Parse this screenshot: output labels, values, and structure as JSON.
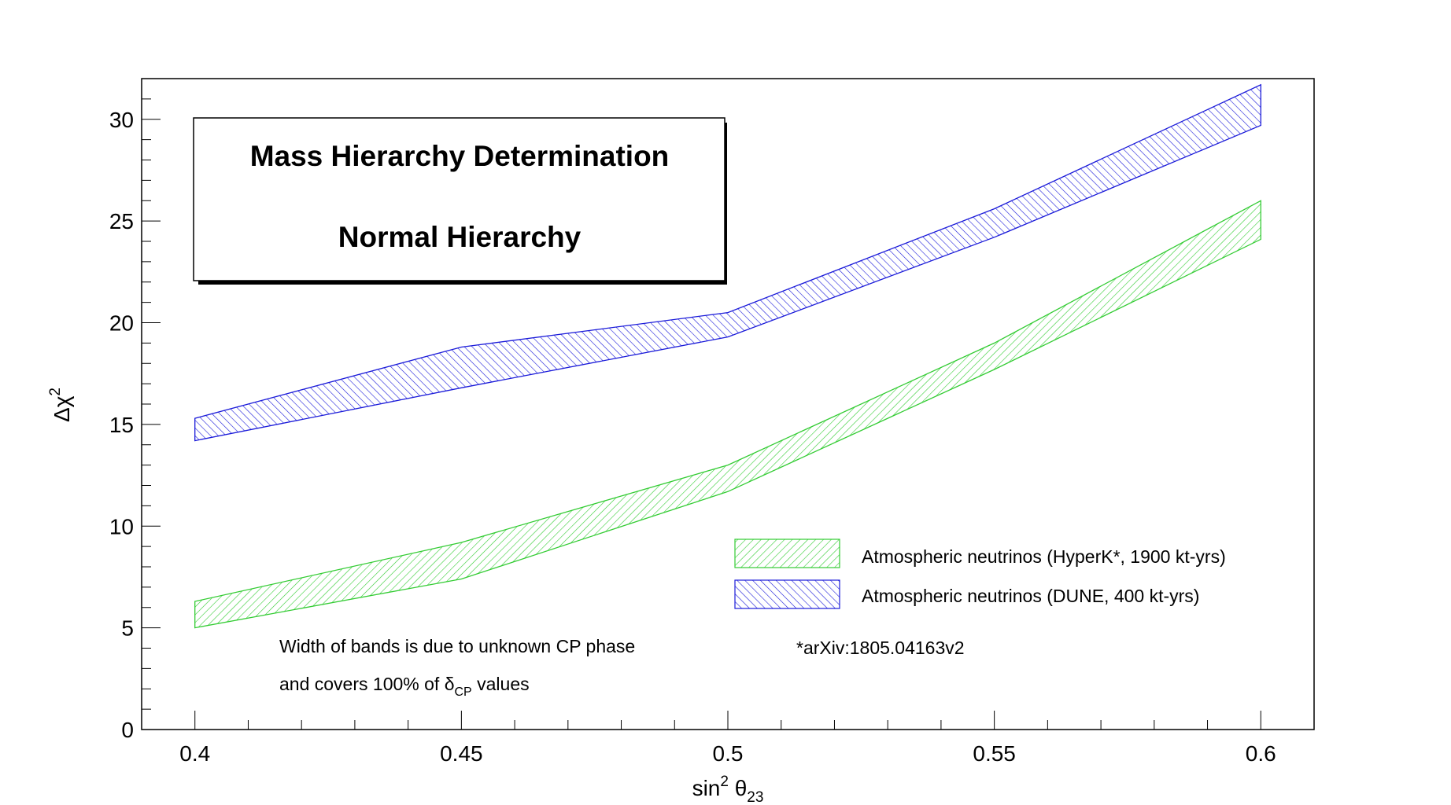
{
  "chart_data": {
    "type": "area",
    "title_box": {
      "line1": "Mass Hierarchy Determination",
      "line2": "Normal Hierarchy"
    },
    "xlabel": {
      "main": "sin",
      "sup": "2",
      "theta": " θ",
      "sub": "23"
    },
    "ylabel": {
      "main": "Δχ",
      "sup": "2"
    },
    "xlim": [
      0.39,
      0.61
    ],
    "ylim": [
      0,
      32
    ],
    "x_ticks": [
      {
        "value": 0.4,
        "label": "0.4"
      },
      {
        "value": 0.45,
        "label": "0.45"
      },
      {
        "value": 0.5,
        "label": "0.5"
      },
      {
        "value": 0.55,
        "label": "0.55"
      },
      {
        "value": 0.6,
        "label": "0.6"
      }
    ],
    "y_ticks": [
      {
        "value": 0,
        "label": "0"
      },
      {
        "value": 5,
        "label": "5"
      },
      {
        "value": 10,
        "label": "10"
      },
      {
        "value": 15,
        "label": "15"
      },
      {
        "value": 20,
        "label": "20"
      },
      {
        "value": 25,
        "label": "25"
      },
      {
        "value": 30,
        "label": "30"
      }
    ],
    "x": [
      0.4,
      0.45,
      0.5,
      0.55,
      0.6
    ],
    "series": [
      {
        "name": "Atmospheric neutrinos (HyperK*, 1900 kt-yrs)",
        "color": "#33cc33",
        "upper": [
          6.3,
          9.2,
          13.0,
          19.0,
          26.0
        ],
        "lower": [
          5.0,
          7.4,
          11.7,
          17.7,
          24.1
        ]
      },
      {
        "name": "Atmospheric neutrinos (DUNE, 400 kt-yrs)",
        "color": "#1a1ad9",
        "upper": [
          15.3,
          18.8,
          20.5,
          25.6,
          31.7
        ],
        "lower": [
          14.2,
          16.8,
          19.3,
          24.2,
          29.7
        ]
      }
    ],
    "legend_placement": "lower-right",
    "annotations": {
      "note_line1": "Width of bands is due to unknown CP phase",
      "note_line2_pre": "and covers 100% of ",
      "note_delta": "δ",
      "note_sub": "CP",
      "note_line2_post": " values",
      "reference": "*arXiv:1805.04163v2"
    },
    "grid": false
  }
}
